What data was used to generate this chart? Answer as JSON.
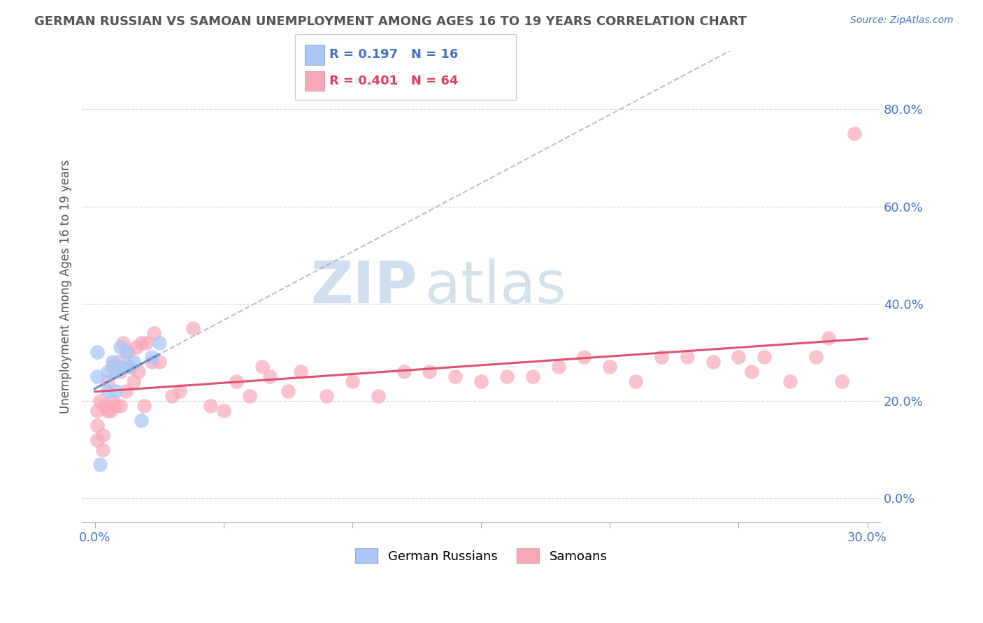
{
  "title": "GERMAN RUSSIAN VS SAMOAN UNEMPLOYMENT AMONG AGES 16 TO 19 YEARS CORRELATION CHART",
  "source": "Source: ZipAtlas.com",
  "ylabel": "Unemployment Among Ages 16 to 19 years",
  "xlim": [
    -0.005,
    0.305
  ],
  "ylim": [
    -0.05,
    0.92
  ],
  "ytick_values": [
    0.0,
    0.2,
    0.4,
    0.6,
    0.8
  ],
  "xtick_values": [
    0.0,
    0.05,
    0.1,
    0.15,
    0.2,
    0.25,
    0.3
  ],
  "legend_gr_r": "0.197",
  "legend_gr_n": "16",
  "legend_sa_r": "0.401",
  "legend_sa_n": "64",
  "color_gr": "#a8c8f8",
  "color_sa": "#f8a8b8",
  "color_gr_line": "#4472c4",
  "color_sa_line": "#e05070",
  "watermark_color": "#d0dff0",
  "gr_x": [
    0.001,
    0.001,
    0.002,
    0.005,
    0.005,
    0.007,
    0.008,
    0.008,
    0.01,
    0.01,
    0.012,
    0.013,
    0.015,
    0.018,
    0.022,
    0.025
  ],
  "gr_y": [
    0.25,
    0.3,
    0.07,
    0.22,
    0.26,
    0.28,
    0.22,
    0.26,
    0.27,
    0.31,
    0.3,
    0.27,
    0.28,
    0.16,
    0.29,
    0.32
  ],
  "sa_x": [
    0.001,
    0.001,
    0.001,
    0.002,
    0.003,
    0.003,
    0.004,
    0.005,
    0.005,
    0.006,
    0.007,
    0.007,
    0.008,
    0.009,
    0.01,
    0.01,
    0.011,
    0.012,
    0.013,
    0.014,
    0.015,
    0.016,
    0.017,
    0.018,
    0.019,
    0.02,
    0.022,
    0.023,
    0.025,
    0.03,
    0.033,
    0.038,
    0.045,
    0.05,
    0.055,
    0.06,
    0.065,
    0.068,
    0.075,
    0.08,
    0.09,
    0.1,
    0.11,
    0.12,
    0.13,
    0.14,
    0.15,
    0.16,
    0.17,
    0.18,
    0.19,
    0.2,
    0.21,
    0.22,
    0.23,
    0.24,
    0.25,
    0.255,
    0.26,
    0.27,
    0.28,
    0.285,
    0.29,
    0.295
  ],
  "sa_y": [
    0.12,
    0.15,
    0.18,
    0.2,
    0.1,
    0.13,
    0.19,
    0.18,
    0.24,
    0.18,
    0.2,
    0.27,
    0.19,
    0.28,
    0.19,
    0.26,
    0.32,
    0.22,
    0.3,
    0.27,
    0.24,
    0.31,
    0.26,
    0.32,
    0.19,
    0.32,
    0.28,
    0.34,
    0.28,
    0.21,
    0.22,
    0.35,
    0.19,
    0.18,
    0.24,
    0.21,
    0.27,
    0.25,
    0.22,
    0.26,
    0.21,
    0.24,
    0.21,
    0.26,
    0.26,
    0.25,
    0.24,
    0.25,
    0.25,
    0.27,
    0.29,
    0.27,
    0.24,
    0.29,
    0.29,
    0.28,
    0.29,
    0.26,
    0.29,
    0.24,
    0.29,
    0.33,
    0.24,
    0.75
  ]
}
